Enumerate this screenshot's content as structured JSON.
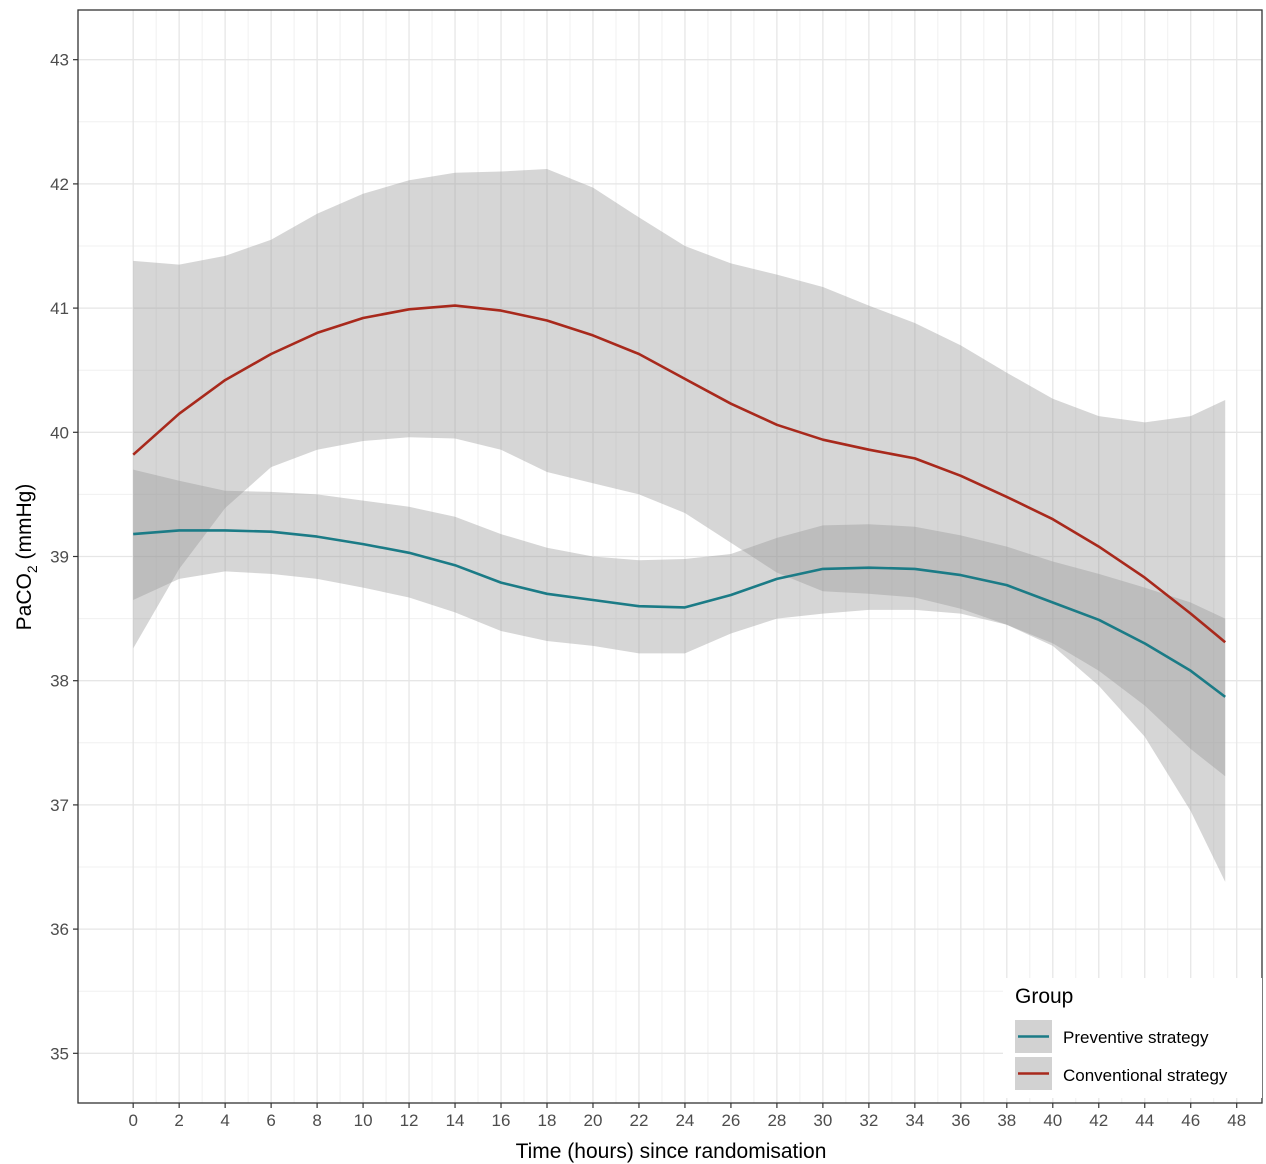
{
  "chart_data": {
    "type": "line",
    "xlabel": "Time (hours) since randomisation",
    "ylabel_main": "PaCO",
    "ylabel_sub": "2",
    "ylabel_unit": " (mmHg)",
    "xlim": [
      -2.4,
      49.1
    ],
    "ylim": [
      34.6,
      43.4
    ],
    "x_ticks": [
      0,
      2,
      4,
      6,
      8,
      10,
      12,
      14,
      16,
      18,
      20,
      22,
      24,
      26,
      28,
      30,
      32,
      34,
      36,
      38,
      40,
      42,
      44,
      46,
      48
    ],
    "x_tick_labels": [
      "0",
      "2",
      "4",
      "6",
      "8",
      "10",
      "12",
      "14",
      "16",
      "18",
      "20",
      "22",
      "24",
      "26",
      "28",
      "30",
      "32",
      "34",
      "36",
      "38",
      "40",
      "42",
      "44",
      "46",
      "48"
    ],
    "y_ticks": [
      35,
      36,
      37,
      38,
      39,
      40,
      41,
      42,
      43
    ],
    "y_tick_labels": [
      "35",
      "36",
      "37",
      "38",
      "39",
      "40",
      "41",
      "42",
      "43"
    ],
    "grid": true,
    "legend": {
      "title": "Group",
      "position": "bottom-right"
    },
    "series": [
      {
        "name": "Preventive strategy",
        "color": "#1b7b86",
        "x": [
          0,
          2,
          4,
          6,
          8,
          10,
          12,
          14,
          16,
          18,
          20,
          22,
          24,
          26,
          28,
          30,
          32,
          34,
          36,
          38,
          40,
          42,
          44,
          46,
          47.5
        ],
        "y": [
          39.18,
          39.21,
          39.21,
          39.2,
          39.16,
          39.1,
          39.03,
          38.93,
          38.79,
          38.7,
          38.65,
          38.6,
          38.59,
          38.69,
          38.82,
          38.9,
          38.91,
          38.9,
          38.85,
          38.77,
          38.63,
          38.49,
          38.3,
          38.08,
          37.87
        ],
        "lower": [
          38.65,
          38.82,
          38.88,
          38.86,
          38.82,
          38.75,
          38.67,
          38.55,
          38.4,
          38.32,
          38.28,
          38.22,
          38.22,
          38.38,
          38.5,
          38.54,
          38.57,
          38.57,
          38.54,
          38.45,
          38.3,
          38.08,
          37.8,
          37.45,
          37.23
        ],
        "upper": [
          39.7,
          39.61,
          39.53,
          39.52,
          39.5,
          39.45,
          39.4,
          39.32,
          39.18,
          39.07,
          39.0,
          38.97,
          38.98,
          39.02,
          39.15,
          39.25,
          39.26,
          39.24,
          39.17,
          39.08,
          38.96,
          38.86,
          38.75,
          38.63,
          38.5
        ]
      },
      {
        "name": "Conventional strategy",
        "color": "#a8291c",
        "x": [
          0,
          2,
          4,
          6,
          8,
          10,
          12,
          14,
          16,
          18,
          20,
          22,
          24,
          26,
          28,
          30,
          32,
          34,
          36,
          38,
          40,
          42,
          44,
          46,
          47.5
        ],
        "y": [
          39.82,
          40.15,
          40.42,
          40.63,
          40.8,
          40.92,
          40.99,
          41.02,
          40.98,
          40.9,
          40.78,
          40.63,
          40.43,
          40.23,
          40.06,
          39.94,
          39.86,
          39.79,
          39.65,
          39.48,
          39.3,
          39.08,
          38.83,
          38.54,
          38.31
        ],
        "lower": [
          38.26,
          38.9,
          39.39,
          39.72,
          39.86,
          39.93,
          39.96,
          39.95,
          39.86,
          39.68,
          39.59,
          39.5,
          39.35,
          39.11,
          38.87,
          38.72,
          38.7,
          38.67,
          38.58,
          38.45,
          38.28,
          37.96,
          37.55,
          36.95,
          36.38
        ],
        "upper": [
          41.38,
          41.35,
          41.42,
          41.55,
          41.76,
          41.92,
          42.03,
          42.09,
          42.1,
          42.12,
          41.97,
          41.73,
          41.5,
          41.36,
          41.27,
          41.17,
          41.02,
          40.88,
          40.7,
          40.48,
          40.27,
          40.13,
          40.08,
          40.13,
          40.26
        ]
      }
    ]
  }
}
